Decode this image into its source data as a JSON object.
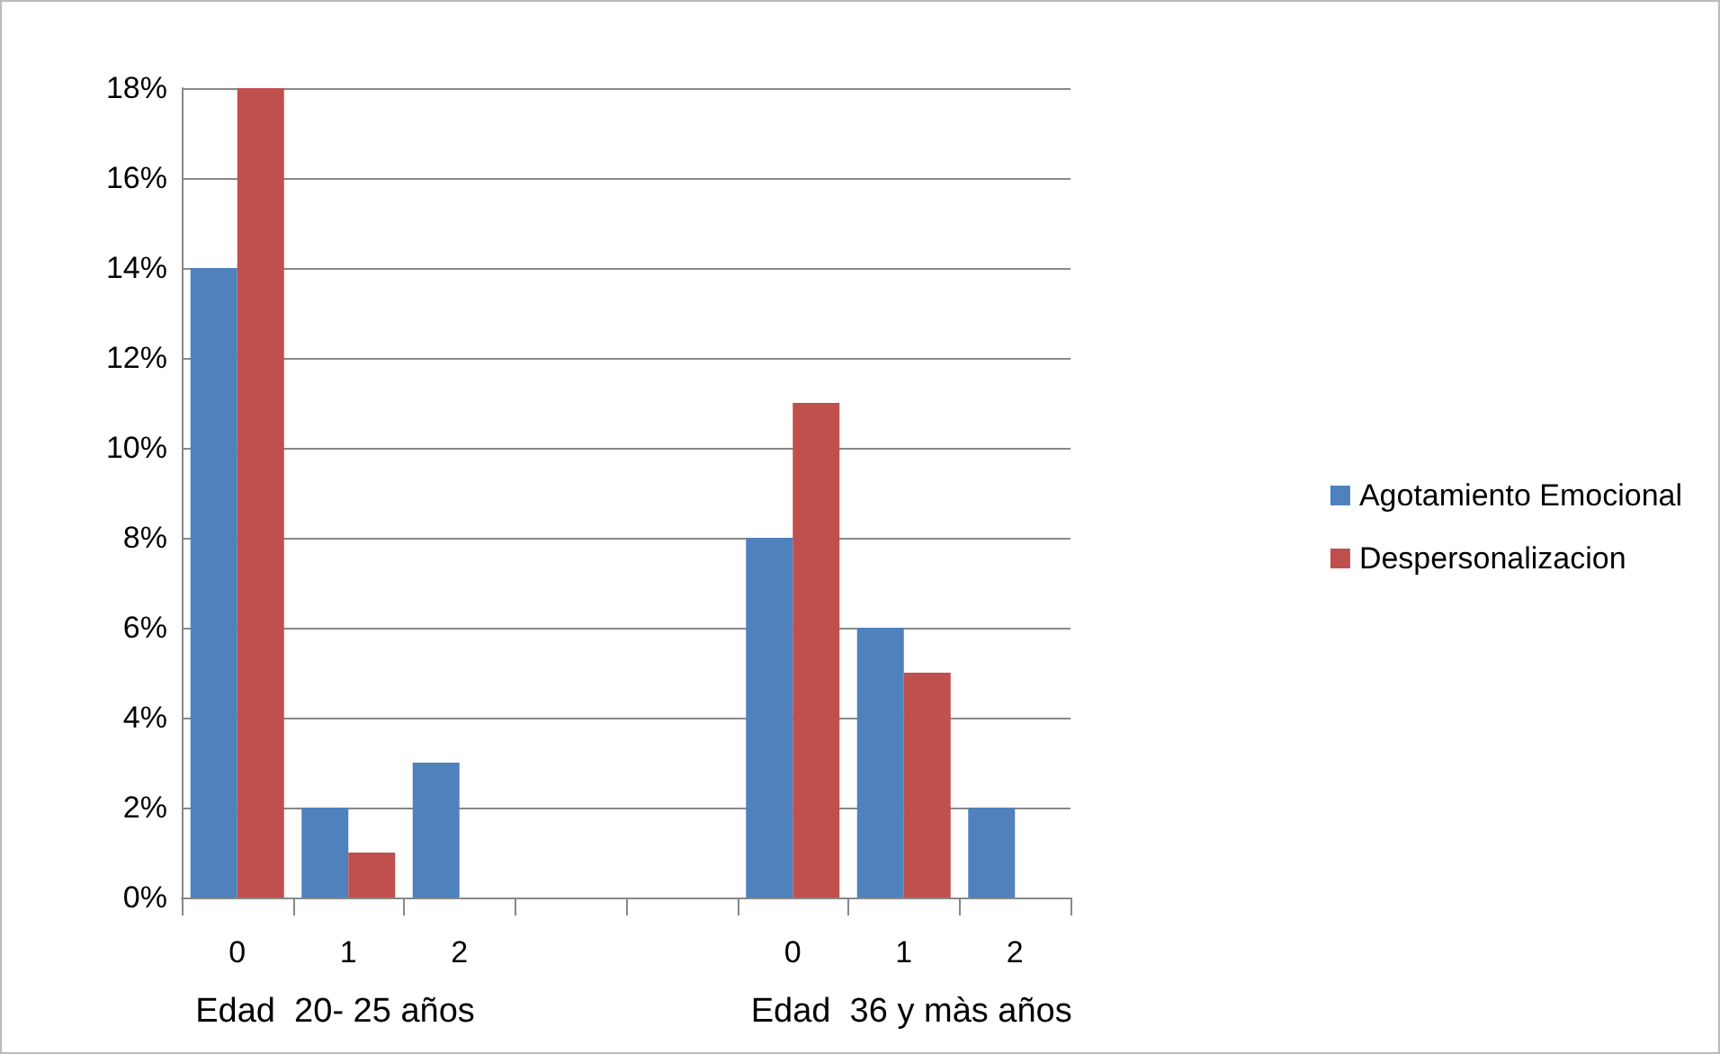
{
  "chart_data": {
    "type": "bar",
    "categories": [
      "0",
      "1",
      "2",
      null,
      null,
      "0",
      "1",
      "2"
    ],
    "series": [
      {
        "name": "Agotamiento Emocional",
        "color": "#4f81bd",
        "values": [
          14,
          2,
          3,
          null,
          null,
          8,
          6,
          2
        ]
      },
      {
        "name": "Despersonalizacion",
        "color": "#c0504d",
        "values": [
          18,
          1,
          0,
          null,
          null,
          11,
          5,
          0
        ]
      }
    ],
    "annotations": [
      "Edad  20- 25 años",
      "Edad  36 y màs años"
    ],
    "ylim": [
      0,
      18
    ],
    "yticks": [
      {
        "value": 0,
        "label": "0%"
      },
      {
        "value": 2,
        "label": "2%"
      },
      {
        "value": 4,
        "label": "4%"
      },
      {
        "value": 6,
        "label": "6%"
      },
      {
        "value": 8,
        "label": "8%"
      },
      {
        "value": 10,
        "label": "10%"
      },
      {
        "value": 12,
        "label": "12%"
      },
      {
        "value": 14,
        "label": "14%"
      },
      {
        "value": 16,
        "label": "16%"
      },
      {
        "value": 18,
        "label": "18%"
      }
    ],
    "grid": "y",
    "legend": "right"
  }
}
